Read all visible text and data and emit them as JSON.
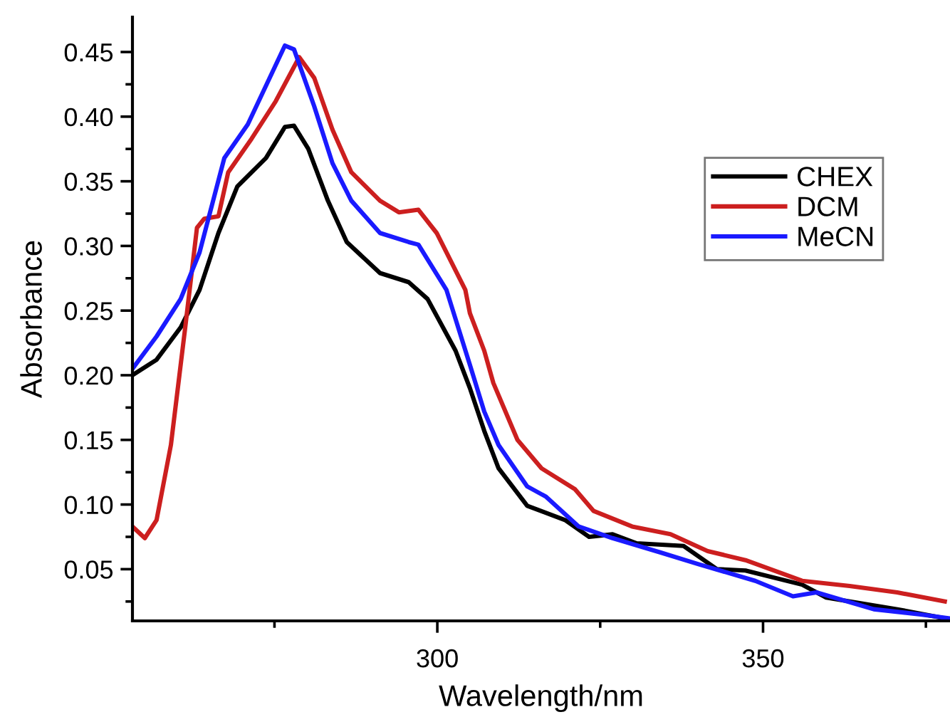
{
  "chart_data": {
    "type": "line",
    "xlabel": "Wavelength/nm",
    "ylabel": "Absorbance",
    "xlim": [
      253.2,
      378.7
    ],
    "ylim": [
      0.01,
      0.477
    ],
    "xticks": [
      {
        "value": 275,
        "label": null
      },
      300,
      {
        "value": 325,
        "label": null
      },
      350,
      {
        "value": 375,
        "label": null
      }
    ],
    "yticks": [
      {
        "value": 0.025,
        "label": null
      },
      {
        "value": 0.05,
        "label": "0.05"
      },
      {
        "value": 0.075,
        "label": null
      },
      {
        "value": 0.1,
        "label": "0.10"
      },
      {
        "value": 0.125,
        "label": null
      },
      {
        "value": 0.15,
        "label": "0.15"
      },
      {
        "value": 0.175,
        "label": null
      },
      {
        "value": 0.2,
        "label": "0.20"
      },
      {
        "value": 0.225,
        "label": null
      },
      {
        "value": 0.25,
        "label": "0.25"
      },
      {
        "value": 0.275,
        "label": null
      },
      {
        "value": 0.3,
        "label": "0.30"
      },
      {
        "value": 0.325,
        "label": null
      },
      {
        "value": 0.35,
        "label": "0.35"
      },
      {
        "value": 0.375,
        "label": null
      },
      {
        "value": 0.4,
        "label": "0.40"
      },
      {
        "value": 0.425,
        "label": null
      },
      {
        "value": 0.45,
        "label": "0.45"
      }
    ],
    "grid": false,
    "legend": "upper right",
    "marker": "none",
    "line_style": "solid",
    "series": [
      {
        "name": "CHEX",
        "color": "#000000",
        "x": [
          253.2,
          256.9,
          260.6,
          263.5,
          266.4,
          269.3,
          273.7,
          276.6,
          278,
          280.2,
          283.2,
          286.1,
          291.2,
          295.6,
          298.5,
          302.8,
          305,
          307.2,
          309.4,
          313.8,
          319.6,
          323.3,
          326.9,
          330.6,
          337.8,
          342.9,
          347.3,
          356,
          359.7,
          370.6,
          377.9
        ],
        "values": [
          0.2,
          0.212,
          0.237,
          0.266,
          0.31,
          0.346,
          0.368,
          0.392,
          0.393,
          0.375,
          0.335,
          0.303,
          0.279,
          0.272,
          0.259,
          0.219,
          0.19,
          0.157,
          0.128,
          0.099,
          0.088,
          0.075,
          0.077,
          0.07,
          0.068,
          0.05,
          0.049,
          0.038,
          0.028,
          0.019,
          0.012
        ]
      },
      {
        "name": "DCM",
        "color": "#cc1f1f",
        "x": [
          253.2,
          255.1,
          256.9,
          259.1,
          261.3,
          263.1,
          264.2,
          266.4,
          267.9,
          271.5,
          275.2,
          278.8,
          281.1,
          283.9,
          286.8,
          291.2,
          294.1,
          297.1,
          299.9,
          304.3,
          305,
          307.2,
          308.6,
          312.3,
          316,
          321.1,
          324,
          329.9,
          335.8,
          341.5,
          347.3,
          356,
          363.3,
          370.6,
          377.9
        ],
        "values": [
          0.083,
          0.074,
          0.088,
          0.146,
          0.237,
          0.314,
          0.321,
          0.323,
          0.357,
          0.383,
          0.412,
          0.446,
          0.43,
          0.39,
          0.357,
          0.335,
          0.326,
          0.328,
          0.31,
          0.266,
          0.248,
          0.219,
          0.194,
          0.15,
          0.128,
          0.112,
          0.095,
          0.083,
          0.077,
          0.064,
          0.057,
          0.041,
          0.037,
          0.032,
          0.025
        ]
      },
      {
        "name": "MeCN",
        "color": "#1a1aff",
        "x": [
          253.2,
          256.9,
          260.6,
          263.5,
          267.3,
          270.9,
          276.6,
          278,
          281.1,
          283.9,
          286.8,
          291.2,
          295.6,
          297.1,
          301.4,
          305,
          307.2,
          309.4,
          313.8,
          316.7,
          321.7,
          326.9,
          334.2,
          340,
          348.8,
          354.6,
          358.2,
          367,
          374.2,
          378.6
        ],
        "values": [
          0.205,
          0.23,
          0.259,
          0.295,
          0.368,
          0.394,
          0.455,
          0.452,
          0.408,
          0.364,
          0.335,
          0.31,
          0.303,
          0.301,
          0.266,
          0.208,
          0.172,
          0.146,
          0.114,
          0.106,
          0.083,
          0.074,
          0.063,
          0.054,
          0.041,
          0.029,
          0.032,
          0.019,
          0.015,
          0.012
        ]
      }
    ]
  }
}
